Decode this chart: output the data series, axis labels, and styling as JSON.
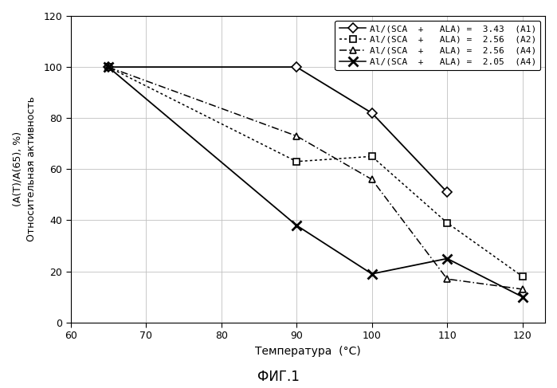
{
  "series": [
    {
      "label": "Al/(SCA  +   ALA) =  3.43  (A1)",
      "x": [
        65,
        90,
        100,
        110
      ],
      "y": [
        100,
        100,
        82,
        51
      ],
      "linestyle": "solid",
      "marker": "D",
      "markersize": 6,
      "markerfacecolor": "white",
      "markeredgecolor": "black",
      "markeredgewidth": 1.2,
      "linewidth": 1.3,
      "color": "black"
    },
    {
      "label": "Al/(SCA  +   ALA) =  2.56  (A2)",
      "x": [
        65,
        90,
        100,
        110,
        120
      ],
      "y": [
        100,
        63,
        65,
        39,
        18
      ],
      "linestyle": "dotted",
      "marker": "s",
      "markersize": 6,
      "markerfacecolor": "white",
      "markeredgecolor": "black",
      "markeredgewidth": 1.2,
      "linewidth": 1.1,
      "color": "black"
    },
    {
      "label": "Al/(SCA  +   ALA) =  2.56  (A4)",
      "x": [
        65,
        90,
        100,
        110,
        120
      ],
      "y": [
        100,
        73,
        56,
        17,
        13
      ],
      "linestyle": "dashdot",
      "marker": "^",
      "markersize": 6,
      "markerfacecolor": "white",
      "markeredgecolor": "black",
      "markeredgewidth": 1.2,
      "linewidth": 1.1,
      "color": "black"
    },
    {
      "label": "Al/(SCA  +   ALA) =  2.05  (A4)",
      "x": [
        65,
        90,
        100,
        110,
        120
      ],
      "y": [
        100,
        38,
        19,
        25,
        10
      ],
      "linestyle": "solid",
      "marker": "x",
      "markersize": 8,
      "markerfacecolor": "black",
      "markeredgecolor": "black",
      "markeredgewidth": 2.0,
      "linewidth": 1.3,
      "color": "black"
    }
  ],
  "xlim": [
    60,
    123
  ],
  "ylim": [
    0,
    120
  ],
  "xticks": [
    60,
    70,
    80,
    90,
    100,
    110,
    120
  ],
  "yticks": [
    0,
    20,
    40,
    60,
    80,
    100,
    120
  ],
  "xlabel": "Температура  (°C)",
  "ylabel_top": "(A(T)/A(65), %)",
  "ylabel_bot": "Относительная активность",
  "figure_label": "ФИГ.1",
  "bg_color": "#ffffff",
  "grid_color": "#c0c0c0",
  "legend_labels": [
    "Al/(SCA  +   ALA) =  3.43  (A1)",
    "Al/(SCA  +   ALA) =  2.56  (A2)",
    "Al/(SCA  +   ALA) =  2.56  (A4)",
    "Al/(SCA  +   ALA) =  2.05  (A4)"
  ]
}
